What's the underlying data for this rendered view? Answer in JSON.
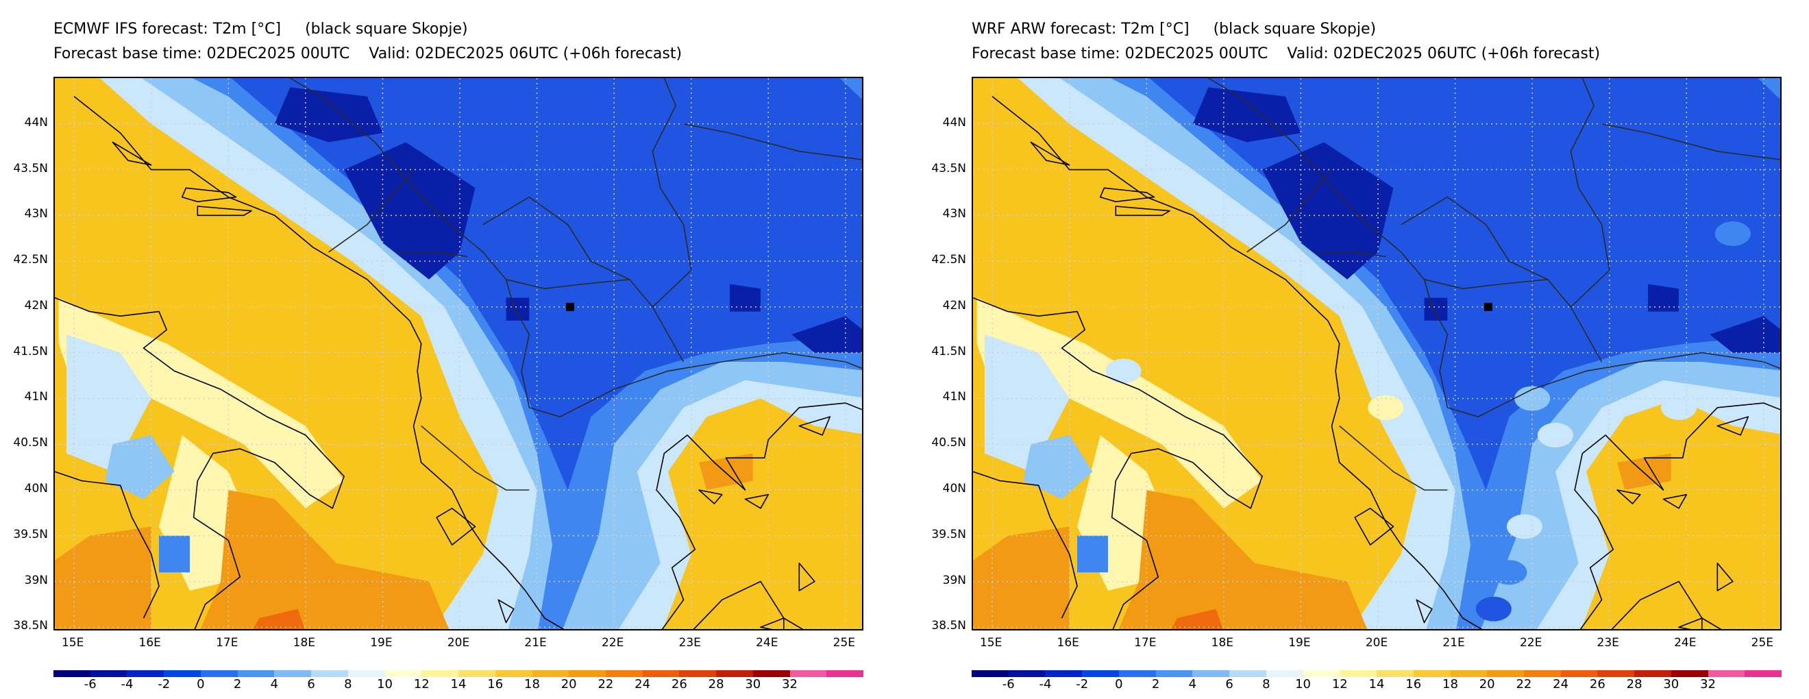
{
  "panels": [
    {
      "title_line1": "ECMWF IFS forecast: T2m [°C]     (black square Skopje)",
      "title_line2": "Forecast base time: 02DEC2025 00UTC    Valid: 02DEC2025 06UTC (+06h forecast)"
    },
    {
      "title_line1": "WRF ARW forecast: T2m [°C]     (black square Skopje)",
      "title_line2": "Forecast base time: 02DEC2025 00UTC    Valid: 02DEC2025 06UTC (+06h forecast)"
    }
  ],
  "lat_labels": [
    "44N",
    "43.5N",
    "43N",
    "42.5N",
    "42N",
    "41.5N",
    "41N",
    "40.5N",
    "40N",
    "39.5N",
    "39N",
    "38.5N"
  ],
  "lon_labels": [
    "15E",
    "16E",
    "17E",
    "18E",
    "19E",
    "20E",
    "21E",
    "22E",
    "23E",
    "24E",
    "25E"
  ],
  "colorbar": {
    "labels": [
      "-6",
      "-4",
      "-2",
      "0",
      "2",
      "4",
      "6",
      "8",
      "10",
      "12",
      "14",
      "16",
      "18",
      "20",
      "22",
      "24",
      "26",
      "28",
      "30",
      "32"
    ],
    "colors": [
      "#00007f",
      "#00129b",
      "#0024c8",
      "#0047e6",
      "#2b6fee",
      "#4b95f2",
      "#7fbaf7",
      "#b4dcfa",
      "#e8f4fb",
      "#ffffd0",
      "#fff59a",
      "#ffe066",
      "#ffc832",
      "#f9b21c",
      "#f69a10",
      "#f47e0c",
      "#ee5e0a",
      "#e0400a",
      "#c02008",
      "#9b0000",
      "#f05aa0",
      "#e83292"
    ]
  },
  "legend_colors": {
    "cold_core": "#0a1fa8",
    "cold": "#1f55e0",
    "cool": "#3f86f0",
    "mild": "#8ec6f6",
    "light": "#cbe7fb",
    "pale": "#fff7b0",
    "warm": "#f8c41e",
    "hot": "#f39a14",
    "hotter": "#ee6a0c",
    "coast_line": "#000000",
    "border_line": "#2a2a2a",
    "grid_line": "#d0d0d0",
    "skopje_marker": "#000000"
  },
  "map": {
    "lon_range": [
      14.75,
      25.25
    ],
    "lat_range": [
      38.45,
      44.5
    ],
    "grid_lons": [
      15,
      16,
      17,
      18,
      19,
      20,
      21,
      22,
      23,
      24,
      25
    ],
    "grid_lats": [
      38.5,
      39,
      39.5,
      40,
      40.5,
      41,
      41.5,
      42,
      42.5,
      43,
      43.5,
      44
    ],
    "skopje": {
      "lon": 21.43,
      "lat": 42.0
    }
  }
}
